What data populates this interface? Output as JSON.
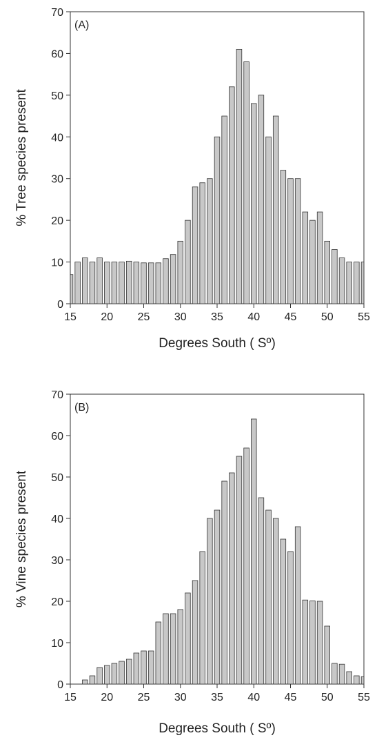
{
  "chart_data": [
    {
      "type": "bar",
      "panel_label": "(A)",
      "title": "",
      "xlabel": "Degrees South ( Sº)",
      "ylabel": "% Tree species present",
      "xlim": [
        15,
        55
      ],
      "ylim": [
        0,
        70
      ],
      "x_ticks": [
        15,
        20,
        25,
        30,
        35,
        40,
        45,
        50,
        55
      ],
      "y_ticks": [
        0,
        10,
        20,
        30,
        40,
        50,
        60,
        70
      ],
      "grid": false,
      "bar_color": "#c8c8c8",
      "x": [
        15,
        16,
        17,
        18,
        19,
        20,
        21,
        22,
        23,
        24,
        25,
        26,
        27,
        28,
        29,
        30,
        31,
        32,
        33,
        34,
        35,
        36,
        37,
        38,
        39,
        40,
        41,
        42,
        43,
        44,
        45,
        46,
        47,
        48,
        49,
        50,
        51,
        52,
        53,
        54,
        55
      ],
      "values": [
        7,
        10,
        11,
        10,
        11,
        10,
        10,
        10,
        10.2,
        10,
        9.8,
        9.8,
        9.8,
        10.8,
        11.8,
        15,
        20,
        28,
        29,
        30,
        40,
        45,
        52,
        61,
        58,
        48,
        50,
        40,
        45,
        32,
        30,
        30,
        22,
        20,
        22,
        15,
        13,
        11,
        10,
        10,
        10
      ]
    },
    {
      "type": "bar",
      "panel_label": "(B)",
      "title": "",
      "xlabel": "Degrees South ( Sº)",
      "ylabel": "% Vine species present",
      "xlim": [
        15,
        55
      ],
      "ylim": [
        0,
        70
      ],
      "x_ticks": [
        15,
        20,
        25,
        30,
        35,
        40,
        45,
        50,
        55
      ],
      "y_ticks": [
        0,
        10,
        20,
        30,
        40,
        50,
        60,
        70
      ],
      "grid": false,
      "bar_color": "#c8c8c8",
      "x": [
        17,
        18,
        19,
        20,
        21,
        22,
        23,
        24,
        25,
        26,
        27,
        28,
        29,
        30,
        31,
        32,
        33,
        34,
        35,
        36,
        37,
        38,
        39,
        40,
        41,
        42,
        43,
        44,
        45,
        46,
        47,
        48,
        49,
        50,
        51,
        52,
        53,
        54,
        55
      ],
      "values": [
        1,
        2,
        4,
        4.5,
        5,
        5.5,
        6,
        7.5,
        8,
        8,
        15,
        17,
        17,
        18,
        22,
        25,
        32,
        40,
        42,
        49,
        51,
        55,
        57,
        64,
        45,
        42,
        40,
        35,
        32,
        38,
        20.3,
        20.1,
        20,
        14,
        5,
        4.8,
        3,
        2,
        1.8
      ]
    }
  ]
}
